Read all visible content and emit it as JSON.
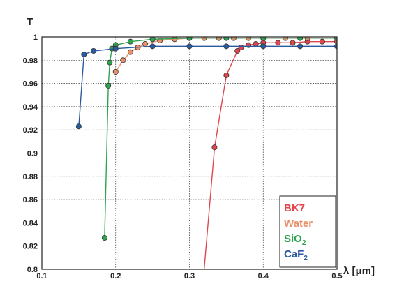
{
  "chart_data": {
    "type": "line",
    "xlabel": "λ [μm]",
    "ylabel": "T",
    "xlim": [
      0.1,
      0.5
    ],
    "ylim": [
      0.8,
      1.0
    ],
    "grid": true,
    "legend_position": "bottom-right",
    "x_ticks": [
      "0.1",
      "0.2",
      "0.3",
      "0.4",
      "0.5"
    ],
    "y_ticks": [
      "0.8",
      "0.82",
      "0.84",
      "0.86",
      "0.88",
      "0.9",
      "0.92",
      "0.94",
      "0.96",
      "0.98",
      "1"
    ],
    "series": [
      {
        "name": "BK7",
        "legend_main": "BK7",
        "legend_sub": "",
        "color": "#e0474c",
        "x": [
          0.32,
          0.334,
          0.35,
          0.365,
          0.37,
          0.38,
          0.39,
          0.4,
          0.42,
          0.44,
          0.46,
          0.48,
          0.5
        ],
        "y": [
          0.8,
          0.905,
          0.967,
          0.988,
          0.991,
          0.993,
          0.994,
          0.995,
          0.995,
          0.995,
          0.996,
          0.996,
          0.996
        ],
        "markers": [
          false,
          true,
          true,
          true,
          true,
          true,
          true,
          true,
          true,
          true,
          true,
          true,
          true
        ]
      },
      {
        "name": "Water",
        "legend_main": "Water",
        "legend_sub": "",
        "color": "#e8906a",
        "x": [
          0.2,
          0.21,
          0.22,
          0.23,
          0.24,
          0.26,
          0.28,
          0.3,
          0.32,
          0.34,
          0.36,
          0.38,
          0.4,
          0.43,
          0.46,
          0.5
        ],
        "y": [
          0.97,
          0.98,
          0.987,
          0.991,
          0.994,
          0.997,
          0.998,
          0.999,
          0.999,
          0.999,
          0.999,
          0.999,
          0.999,
          0.999,
          0.999,
          0.999
        ]
      },
      {
        "name": "SiO2",
        "legend_main": "SiO",
        "legend_sub": "2",
        "color": "#2ea44f",
        "x": [
          0.185,
          0.19,
          0.192,
          0.195,
          0.2,
          0.22,
          0.25,
          0.3,
          0.35,
          0.4,
          0.45,
          0.5
        ],
        "y": [
          0.827,
          0.958,
          0.978,
          0.99,
          0.993,
          0.996,
          0.998,
          0.999,
          0.999,
          0.999,
          0.999,
          0.999
        ]
      },
      {
        "name": "CaF2",
        "legend_main": "CaF",
        "legend_sub": "2",
        "color": "#2a5aa0",
        "x": [
          0.15,
          0.157,
          0.17,
          0.2,
          0.25,
          0.3,
          0.35,
          0.4,
          0.45,
          0.5
        ],
        "y": [
          0.923,
          0.985,
          0.988,
          0.99,
          0.992,
          0.992,
          0.992,
          0.992,
          0.992,
          0.992
        ]
      }
    ]
  }
}
